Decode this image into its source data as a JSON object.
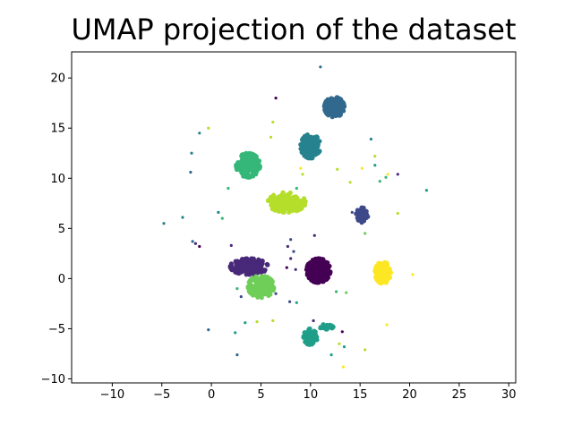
{
  "chart_data": {
    "type": "scatter",
    "title": "UMAP projection of the dataset",
    "xlabel": "",
    "ylabel": "",
    "xlim": [
      -14.1,
      30.7
    ],
    "ylim": [
      -10.4,
      22.6
    ],
    "xticks": [
      -10,
      -5,
      0,
      5,
      10,
      15,
      20,
      25,
      30
    ],
    "yticks": [
      -10,
      -5,
      0,
      5,
      10,
      15,
      20
    ],
    "grid": false,
    "colormap": "viridis",
    "clusters": [
      {
        "cx": 10.8,
        "cy": 0.8,
        "sx": 1.2,
        "sy": 1.2,
        "n": 320,
        "color": "#440154"
      },
      {
        "cx": 3.8,
        "cy": 1.2,
        "sx": 1.9,
        "sy": 0.8,
        "n": 280,
        "color": "#482878"
      },
      {
        "cx": 15.2,
        "cy": 6.4,
        "sx": 0.6,
        "sy": 0.8,
        "n": 90,
        "color": "#3e4989"
      },
      {
        "cx": 12.4,
        "cy": 17.1,
        "sx": 1.0,
        "sy": 1.0,
        "n": 200,
        "color": "#31688e"
      },
      {
        "cx": 10.0,
        "cy": 13.2,
        "sx": 1.0,
        "sy": 1.2,
        "n": 180,
        "color": "#26828e"
      },
      {
        "cx": 10.0,
        "cy": -5.8,
        "sx": 0.7,
        "sy": 0.8,
        "n": 90,
        "color": "#1f9e89"
      },
      {
        "cx": 11.6,
        "cy": -4.8,
        "sx": 0.7,
        "sy": 0.25,
        "n": 40,
        "color": "#1f9e89"
      },
      {
        "cx": 3.7,
        "cy": 11.3,
        "sx": 1.2,
        "sy": 1.2,
        "n": 200,
        "color": "#35b779"
      },
      {
        "cx": 5.0,
        "cy": -0.8,
        "sx": 1.3,
        "sy": 1.1,
        "n": 240,
        "color": "#6ece58"
      },
      {
        "cx": 7.6,
        "cy": 7.6,
        "sx": 1.9,
        "sy": 1.0,
        "n": 240,
        "color": "#b5de2b"
      },
      {
        "cx": 17.3,
        "cy": 0.6,
        "sx": 0.8,
        "sy": 1.1,
        "n": 180,
        "color": "#fde725"
      }
    ],
    "outliers": [
      {
        "x": 11.0,
        "y": 21.1,
        "color": "#31688e"
      },
      {
        "x": 6.5,
        "y": 18.0,
        "color": "#440154"
      },
      {
        "x": 6.2,
        "y": 15.6,
        "color": "#b5de2b"
      },
      {
        "x": 6.0,
        "y": 14.1,
        "color": "#b5de2b"
      },
      {
        "x": -0.3,
        "y": 15.0,
        "color": "#b5de2b"
      },
      {
        "x": -1.2,
        "y": 14.5,
        "color": "#26828e"
      },
      {
        "x": -2.0,
        "y": 12.5,
        "color": "#26828e"
      },
      {
        "x": -2.1,
        "y": 10.6,
        "color": "#31688e"
      },
      {
        "x": 1.7,
        "y": 9.0,
        "color": "#35b779"
      },
      {
        "x": -2.9,
        "y": 6.1,
        "color": "#26828e"
      },
      {
        "x": -4.8,
        "y": 5.5,
        "color": "#26828e"
      },
      {
        "x": 0.7,
        "y": 6.6,
        "color": "#26828e"
      },
      {
        "x": 1.1,
        "y": 6.0,
        "color": "#35b779"
      },
      {
        "x": -1.9,
        "y": 3.7,
        "color": "#31688e"
      },
      {
        "x": -1.6,
        "y": 3.5,
        "color": "#482878"
      },
      {
        "x": -1.2,
        "y": 3.2,
        "color": "#440154"
      },
      {
        "x": 2.0,
        "y": 3.3,
        "color": "#482878"
      },
      {
        "x": 9.0,
        "y": 11.0,
        "color": "#fde725"
      },
      {
        "x": 9.2,
        "y": 10.4,
        "color": "#b5de2b"
      },
      {
        "x": 8.6,
        "y": 9.0,
        "color": "#35b779"
      },
      {
        "x": 12.7,
        "y": 10.9,
        "color": "#b5de2b"
      },
      {
        "x": 14.0,
        "y": 9.6,
        "color": "#b5de2b"
      },
      {
        "x": 15.2,
        "y": 11.0,
        "color": "#fde725"
      },
      {
        "x": 16.1,
        "y": 13.9,
        "color": "#26828e"
      },
      {
        "x": 16.5,
        "y": 12.2,
        "color": "#b5de2b"
      },
      {
        "x": 16.5,
        "y": 11.3,
        "color": "#1f9e89"
      },
      {
        "x": 17.0,
        "y": 9.7,
        "color": "#35b779"
      },
      {
        "x": 17.6,
        "y": 10.1,
        "color": "#35b779"
      },
      {
        "x": 17.8,
        "y": 10.4,
        "color": "#fde725"
      },
      {
        "x": 18.8,
        "y": 10.4,
        "color": "#482878"
      },
      {
        "x": 21.7,
        "y": 8.8,
        "color": "#1f9e89"
      },
      {
        "x": 18.8,
        "y": 6.5,
        "color": "#b5de2b"
      },
      {
        "x": 14.2,
        "y": 6.6,
        "color": "#3e4989"
      },
      {
        "x": 15.5,
        "y": 4.5,
        "color": "#6ece58"
      },
      {
        "x": 10.4,
        "y": 4.3,
        "color": "#482878"
      },
      {
        "x": 8.0,
        "y": 3.9,
        "color": "#3e4989"
      },
      {
        "x": 7.7,
        "y": 3.2,
        "color": "#482878"
      },
      {
        "x": 8.3,
        "y": 2.7,
        "color": "#3e4989"
      },
      {
        "x": 8.0,
        "y": 2.0,
        "color": "#482878"
      },
      {
        "x": 7.6,
        "y": 1.1,
        "color": "#440154"
      },
      {
        "x": 8.5,
        "y": 0.9,
        "color": "#482878"
      },
      {
        "x": 20.3,
        "y": 0.4,
        "color": "#fde725"
      },
      {
        "x": 13.6,
        "y": -1.4,
        "color": "#6ece58"
      },
      {
        "x": 12.6,
        "y": -1.3,
        "color": "#35b779"
      },
      {
        "x": 8.6,
        "y": -2.4,
        "color": "#1f9e89"
      },
      {
        "x": 7.9,
        "y": -2.3,
        "color": "#3e4989"
      },
      {
        "x": 3.0,
        "y": -1.8,
        "color": "#3e4989"
      },
      {
        "x": 2.6,
        "y": -1.0,
        "color": "#35b779"
      },
      {
        "x": 3.4,
        "y": -4.4,
        "color": "#1f9e89"
      },
      {
        "x": 4.6,
        "y": -4.3,
        "color": "#b5de2b"
      },
      {
        "x": 6.2,
        "y": -4.2,
        "color": "#b5de2b"
      },
      {
        "x": 10.3,
        "y": -4.2,
        "color": "#482878"
      },
      {
        "x": 2.4,
        "y": -5.4,
        "color": "#1f9e89"
      },
      {
        "x": -0.3,
        "y": -5.1,
        "color": "#31688e"
      },
      {
        "x": 13.2,
        "y": -5.3,
        "color": "#440154"
      },
      {
        "x": 12.9,
        "y": -6.5,
        "color": "#b5de2b"
      },
      {
        "x": 13.4,
        "y": -6.8,
        "color": "#1f9e89"
      },
      {
        "x": 15.5,
        "y": -7.1,
        "color": "#b5de2b"
      },
      {
        "x": 12.1,
        "y": -7.6,
        "color": "#1f9e89"
      },
      {
        "x": 2.6,
        "y": -7.6,
        "color": "#31688e"
      },
      {
        "x": 13.3,
        "y": -8.8,
        "color": "#fde725"
      },
      {
        "x": 17.7,
        "y": -4.6,
        "color": "#fde725"
      },
      {
        "x": 6.5,
        "y": -1.5,
        "color": "#3e4989"
      }
    ]
  }
}
